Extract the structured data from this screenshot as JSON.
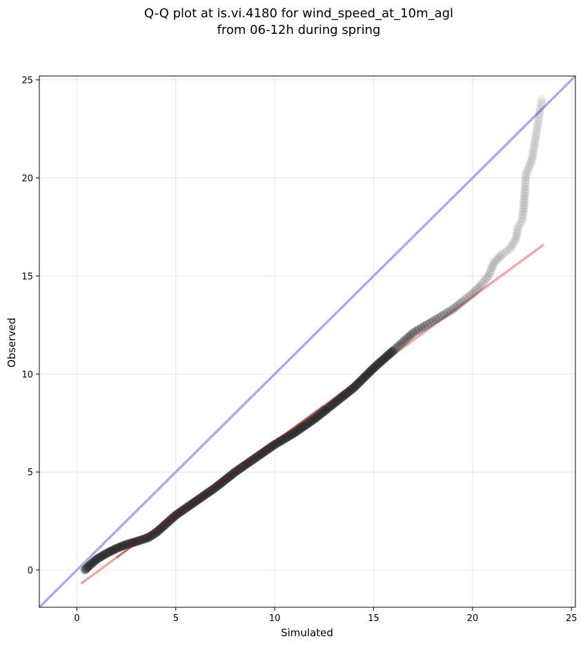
{
  "title_line1": "Q-Q plot at is.vi.4180 for wind_speed_at_10m_agl",
  "title_line2": "from 06-12h during spring",
  "chart_data": {
    "type": "scatter",
    "title": "Q-Q plot at is.vi.4180 for wind_speed_at_10m_agl\nfrom 06-12h during spring",
    "xlabel": "Simulated",
    "ylabel": "Observed",
    "xlim": [
      -1.9,
      25.2
    ],
    "ylim": [
      -1.9,
      25.2
    ],
    "xticks": [
      0,
      5,
      10,
      15,
      20,
      25
    ],
    "yticks": [
      0,
      5,
      10,
      15,
      20,
      25
    ],
    "grid": true,
    "colors": {
      "points": "#2b2b2b",
      "identity_line": "#aaaaf0",
      "fit_line": "#f2a8a8",
      "fit_line_dense": "#8b1a1a"
    },
    "identity_line": {
      "x": [
        -1.9,
        25.2
      ],
      "y": [
        -1.9,
        25.2
      ]
    },
    "fit_line": {
      "x": [
        0.2,
        23.6
      ],
      "y": [
        -0.7,
        16.6
      ]
    },
    "quantile_curve": {
      "x": [
        0.4,
        0.6,
        1.0,
        1.5,
        2.0,
        2.5,
        3.0,
        3.6,
        4.0,
        5.0,
        6.0,
        7.0,
        8.0,
        9.0,
        10.0,
        11.0,
        12.0,
        13.0,
        14.0,
        15.0,
        16.0,
        17.0,
        18.0,
        19.0,
        19.5,
        20.0,
        20.4,
        20.8,
        21.1,
        21.5,
        21.9,
        22.2,
        22.3,
        22.5,
        22.6,
        22.7,
        23.0,
        23.5
      ],
      "y": [
        0.0,
        0.2,
        0.55,
        0.85,
        1.1,
        1.3,
        1.45,
        1.65,
        1.9,
        2.8,
        3.5,
        4.2,
        5.0,
        5.7,
        6.4,
        7.0,
        7.7,
        8.5,
        9.3,
        10.3,
        11.2,
        12.1,
        12.7,
        13.3,
        13.7,
        14.1,
        14.5,
        15.0,
        15.7,
        16.1,
        16.4,
        16.9,
        17.5,
        17.8,
        18.6,
        20.2,
        20.9,
        24.0
      ],
      "opacity": [
        0.8,
        0.8,
        0.8,
        0.8,
        0.8,
        0.8,
        0.8,
        0.8,
        0.8,
        0.8,
        0.8,
        0.8,
        0.8,
        0.8,
        0.8,
        0.8,
        0.8,
        0.7,
        0.6,
        0.55,
        0.45,
        0.38,
        0.3,
        0.24,
        0.2,
        0.16,
        0.14,
        0.13,
        0.12,
        0.11,
        0.1,
        0.1,
        0.1,
        0.1,
        0.12,
        0.1,
        0.1,
        0.08
      ]
    }
  }
}
